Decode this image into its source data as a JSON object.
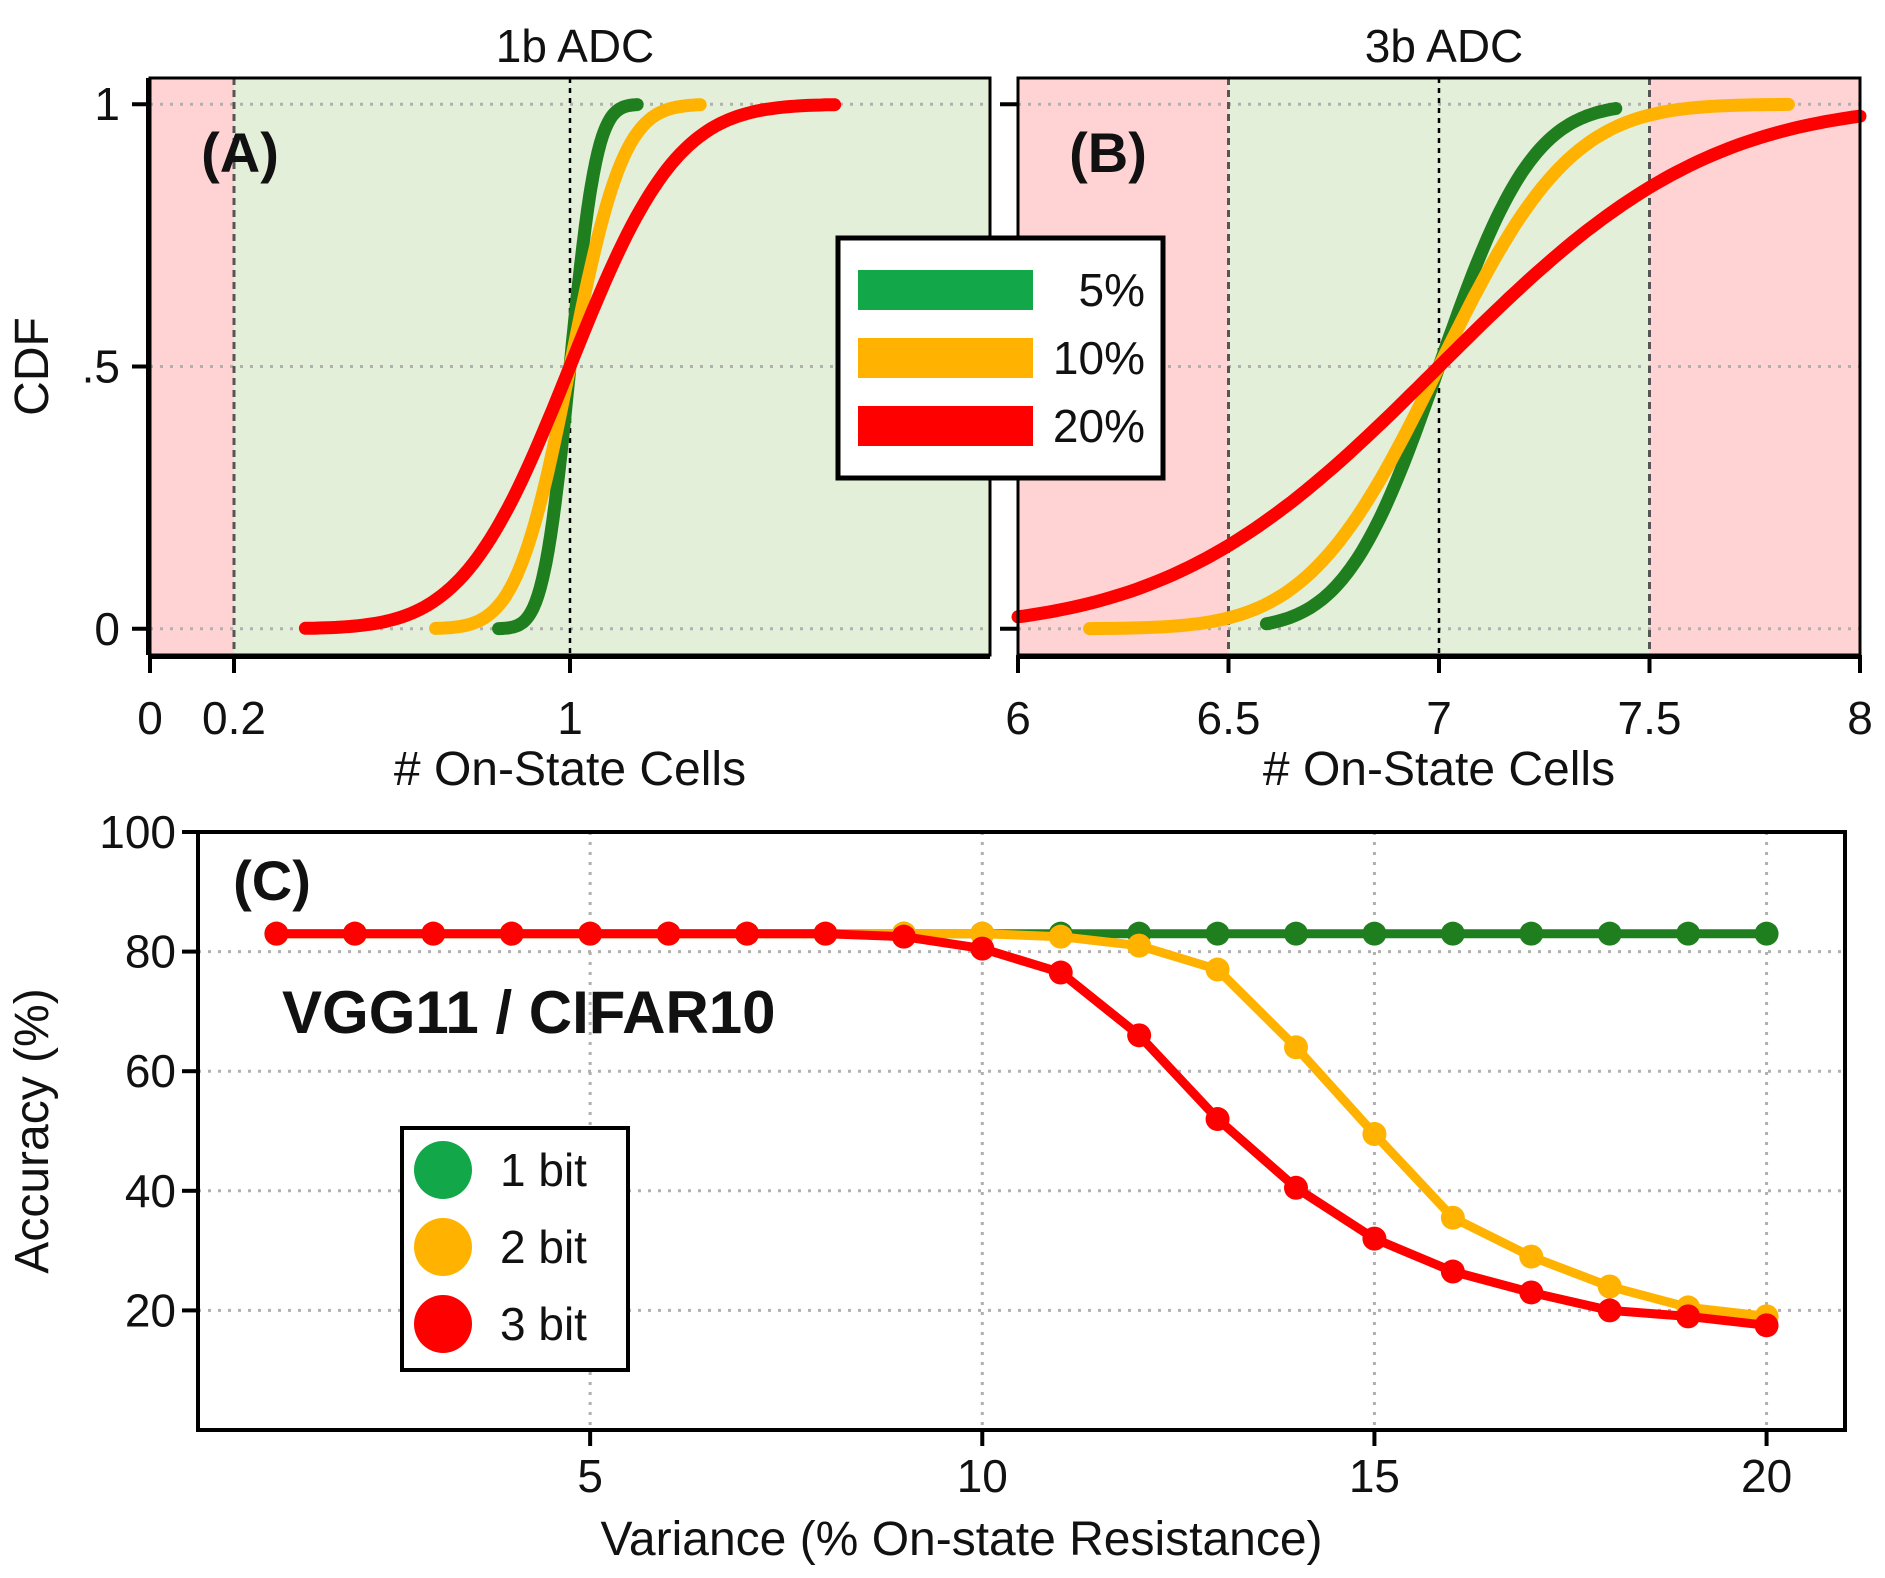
{
  "colors": {
    "green": "#1f7f1f",
    "orange": "#ffb300",
    "red": "#ff0000",
    "legend_green": "#12a84a",
    "safe_region": "#e3efd9",
    "error_region": "#ffd3d3"
  },
  "chart_data": [
    {
      "id": "A",
      "type": "line",
      "panel_label": "(A)",
      "title": "1b ADC",
      "xlabel": "# On-State Cells",
      "ylabel": "CDF",
      "xlim": [
        0,
        2
      ],
      "ylim": [
        -0.05,
        1.05
      ],
      "x_ticks": [
        {
          "value": 0,
          "label": "0"
        },
        {
          "value": 0.2,
          "label": "0.2"
        },
        {
          "value": 1,
          "label": "1"
        }
      ],
      "y_ticks": [
        {
          "value": 0,
          "label": "0"
        },
        {
          "value": 0.5,
          "label": ".5"
        },
        {
          "value": 1,
          "label": "1"
        }
      ],
      "decision_thresholds": [
        0.2
      ],
      "mean_marker": 1,
      "regions": [
        {
          "from": 0,
          "to": 0.2,
          "kind": "error"
        },
        {
          "from": 0.2,
          "to": 2,
          "kind": "safe"
        }
      ],
      "grid": true,
      "series": [
        {
          "name": "5%",
          "color": "green",
          "mu": 1,
          "sigma": 0.05,
          "x_range": [
            0.83,
            1.16
          ]
        },
        {
          "name": "10%",
          "color": "orange",
          "mu": 1,
          "sigma": 0.1,
          "x_range": [
            0.68,
            1.31
          ]
        },
        {
          "name": "20%",
          "color": "red",
          "mu": 1,
          "sigma": 0.2,
          "x_range": [
            0.37,
            1.63
          ]
        }
      ]
    },
    {
      "id": "B",
      "type": "line",
      "panel_label": "(B)",
      "title": "3b ADC",
      "xlabel": "# On-State Cells",
      "xlim": [
        6,
        8
      ],
      "ylim": [
        -0.05,
        1.05
      ],
      "x_ticks": [
        {
          "value": 6,
          "label": "6"
        },
        {
          "value": 6.5,
          "label": "6.5"
        },
        {
          "value": 7,
          "label": "7"
        },
        {
          "value": 7.5,
          "label": "7.5"
        },
        {
          "value": 8,
          "label": "8"
        }
      ],
      "decision_thresholds": [
        6.5,
        7.5
      ],
      "mean_marker": 7,
      "regions": [
        {
          "from": 6,
          "to": 6.5,
          "kind": "error"
        },
        {
          "from": 6.5,
          "to": 7.5,
          "kind": "safe"
        },
        {
          "from": 7.5,
          "to": 8,
          "kind": "error"
        }
      ],
      "grid": true,
      "legend": {
        "title": "",
        "entries": [
          "5%",
          "10%",
          "20%"
        ]
      },
      "series": [
        {
          "name": "5%",
          "color": "green",
          "mu": 7,
          "sigma": 0.175,
          "x_range": [
            6.59,
            7.42
          ]
        },
        {
          "name": "10%",
          "color": "orange",
          "mu": 7,
          "sigma": 0.245,
          "x_range": [
            6.17,
            7.83
          ]
        },
        {
          "name": "20%",
          "color": "red",
          "mu": 7,
          "sigma": 0.5,
          "x_range": [
            6,
            8
          ]
        }
      ]
    },
    {
      "id": "C",
      "type": "line",
      "panel_label": "(C)",
      "annotation": "VGG11 / CIFAR10",
      "xlabel": "Variance (% On-state Resistance)",
      "ylabel": "Accuracy (%)",
      "xlim": [
        0,
        21
      ],
      "ylim": [
        0,
        100
      ],
      "x_ticks": [
        {
          "value": 5,
          "label": "5"
        },
        {
          "value": 10,
          "label": "10"
        },
        {
          "value": 15,
          "label": "15"
        },
        {
          "value": 20,
          "label": "20"
        }
      ],
      "y_ticks": [
        {
          "value": 20,
          "label": "20"
        },
        {
          "value": 40,
          "label": "40"
        },
        {
          "value": 60,
          "label": "60"
        },
        {
          "value": 80,
          "label": "80"
        },
        {
          "value": 100,
          "label": "100"
        }
      ],
      "grid": true,
      "legend": {
        "entries": [
          "1 bit",
          "2 bit",
          "3 bit"
        ]
      },
      "x": [
        1,
        2,
        3,
        4,
        5,
        6,
        7,
        8,
        9,
        10,
        11,
        12,
        13,
        14,
        15,
        16,
        17,
        18,
        19,
        20
      ],
      "series": [
        {
          "name": "1 bit",
          "color": "green",
          "values": [
            83,
            83,
            83,
            83,
            83,
            83,
            83,
            83,
            83,
            83,
            83,
            83,
            83,
            83,
            83,
            83,
            83,
            83,
            83,
            83
          ]
        },
        {
          "name": "2 bit",
          "color": "orange",
          "values": [
            83,
            83,
            83,
            83,
            83,
            83,
            83,
            83,
            83,
            83,
            82.5,
            81,
            77,
            64,
            49.5,
            35.5,
            29,
            24,
            20.5,
            19
          ]
        },
        {
          "name": "3 bit",
          "color": "red",
          "values": [
            83,
            83,
            83,
            83,
            83,
            83,
            83,
            83,
            82.5,
            80.5,
            76.5,
            66,
            52,
            40.5,
            32,
            26.5,
            23,
            20,
            19,
            17.5
          ]
        }
      ]
    }
  ]
}
